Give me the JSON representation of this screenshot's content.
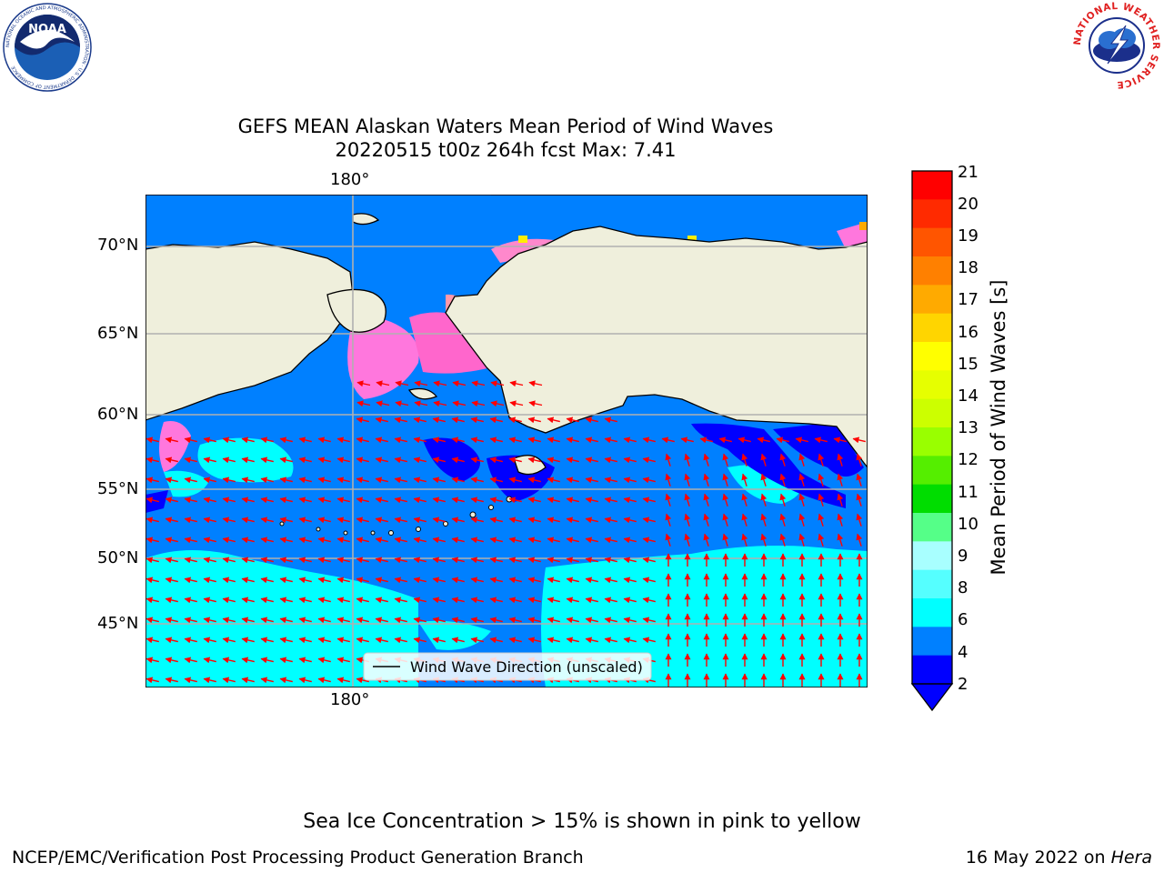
{
  "title_line1": "GEFS MEAN Alaskan Waters Mean Period of Wind Waves",
  "title_line2": "20220515 t00z 264h fcst   Max: 7.41",
  "axes": {
    "lon_label_top": "180°",
    "lon_label_bottom": "180°",
    "lat_labels": [
      "70°N",
      "65°N",
      "60°N",
      "55°N",
      "50°N",
      "45°N"
    ]
  },
  "legend": {
    "label": "Wind Wave Direction (unscaled)"
  },
  "colorbar": {
    "label": "Mean Period of Wind Waves [s]",
    "ticks": [
      "21",
      "20",
      "19",
      "18",
      "17",
      "16",
      "15",
      "14",
      "13",
      "12",
      "11",
      "10",
      "9",
      "8",
      "6",
      "4",
      "2"
    ],
    "colors": [
      "#ff0000",
      "#ff2a00",
      "#ff5500",
      "#ff8000",
      "#ffaa00",
      "#ffd500",
      "#ffff00",
      "#e6ff00",
      "#ccff00",
      "#99ff00",
      "#55ee00",
      "#00dd00",
      "#55ff88",
      "#a8ffff",
      "#55ffff",
      "#00ffff",
      "#0080ff",
      "#0000ff"
    ]
  },
  "note": "Sea Ice Concentration > 15% is shown in pink to yellow",
  "footer_left": "NCEP/EMC/Verification Post Processing Product Generation Branch",
  "footer_right_prefix": "16 May 2022 on ",
  "footer_right_host": "Hera",
  "logos": {
    "noaa_text": "NOAA",
    "noaa_ring": "NATIONAL OCEANIC AND ATMOSPHERIC ADMINISTRATION · U.S. DEPARTMENT OF COMMERCE",
    "nws_ring": "NATIONAL WEATHER SERVICE"
  }
}
